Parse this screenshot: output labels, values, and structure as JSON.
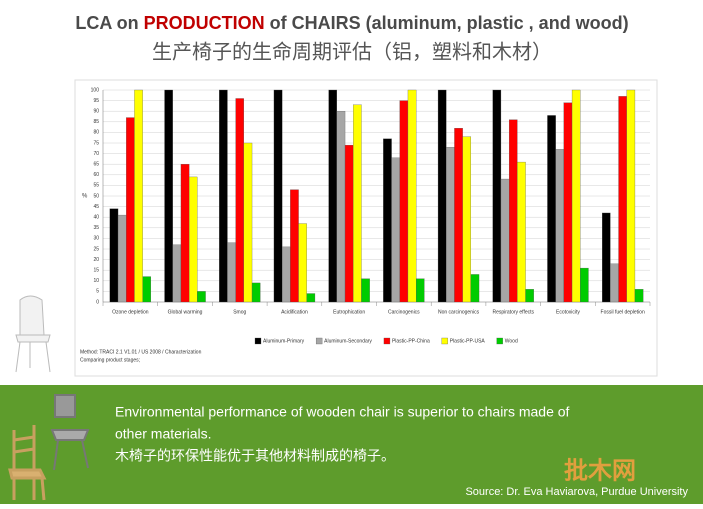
{
  "slide": {
    "title_start": "LCA on ",
    "title_highlight": "PRODUCTION",
    "title_end": " of CHAIRS (aluminum,  plastic , and wood)",
    "subtitle": "生产椅子的生命周期评估（铝，塑料和木材）",
    "method_line1": "Method: TRACI 2.1 V1.01 / US 2008 / Characterization",
    "method_line2": "Comparing product stages;",
    "conclusion_line1": "Environmental performance of wooden chair is superior to chairs made of",
    "conclusion_line2": "other materials.",
    "conclusion_chinese": "木椅子的环保性能优于其他材料制成的椅子。",
    "source": "Source: Dr. Eva Haviarova, Purdue University",
    "watermark": "批木网"
  },
  "chart_data": {
    "type": "bar",
    "ylabel": "%",
    "categories": [
      "Ozone depletion",
      "Global warming",
      "Smog",
      "Acidification",
      "Eutrophication",
      "Carcinogenics",
      "Non carcinogenics",
      "Respiratory effects",
      "Ecotoxicity",
      "Fossil fuel depletion"
    ],
    "series": [
      {
        "name": "Aluminum-Primary",
        "color": "#000000",
        "values": [
          44,
          100,
          100,
          100,
          100,
          77,
          100,
          100,
          88,
          42
        ]
      },
      {
        "name": "Aluminum-Secondary",
        "color": "#a6a6a6",
        "values": [
          41,
          27,
          28,
          26,
          90,
          68,
          73,
          58,
          72,
          18
        ]
      },
      {
        "name": "Plastic-PP-China",
        "color": "#ff0000",
        "values": [
          87,
          65,
          96,
          53,
          74,
          95,
          82,
          86,
          94,
          97
        ]
      },
      {
        "name": "Plastic-PP-USA",
        "color": "#ffff00",
        "values": [
          100,
          59,
          75,
          37,
          93,
          100,
          78,
          66,
          100,
          100
        ]
      },
      {
        "name": "Wood",
        "color": "#00cc00",
        "values": [
          12,
          5,
          9,
          4,
          11,
          11,
          13,
          6,
          16,
          6
        ]
      }
    ],
    "ylim": [
      0,
      100
    ],
    "yticks": [
      0,
      5,
      10,
      15,
      20,
      25,
      30,
      35,
      40,
      45,
      50,
      55,
      60,
      65,
      70,
      75,
      80,
      85,
      90,
      95,
      100
    ],
    "grid": true,
    "legend": "bottom"
  }
}
